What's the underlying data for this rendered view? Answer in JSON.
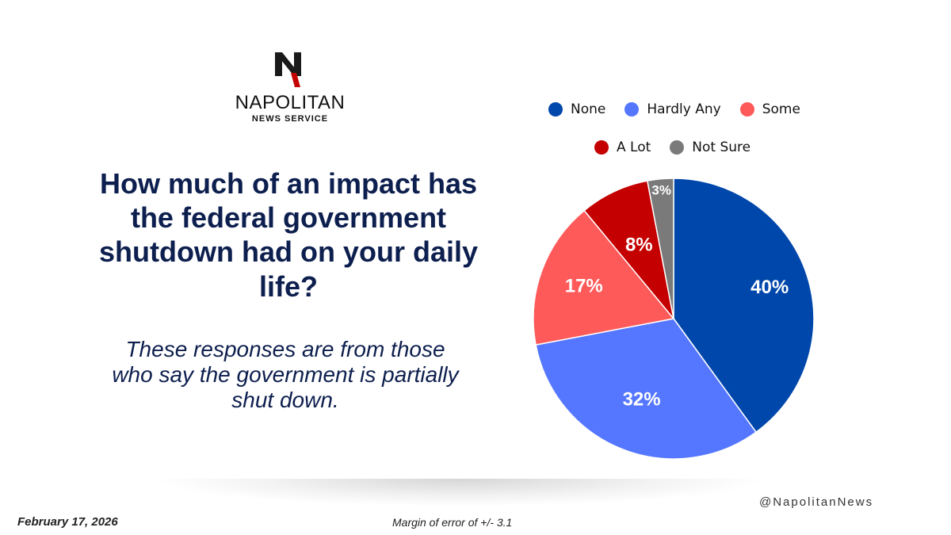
{
  "logo": {
    "name": "NAPOLITAN",
    "sub": "NEWS SERVICE"
  },
  "question": "How much of an impact has the federal government shutdown had on your daily life?",
  "subtitle": "These responses are from those who say the government is partially shut down.",
  "chart_data": {
    "type": "pie",
    "categories": [
      "None",
      "Hardly Any",
      "Some",
      "A Lot",
      "Not Sure"
    ],
    "values": [
      40,
      32,
      17,
      8,
      3
    ],
    "labels": [
      "40%",
      "32%",
      "17%",
      "8%",
      "3%"
    ],
    "colors": [
      "#0047ab",
      "#5577ff",
      "#ff5a5a",
      "#c40000",
      "#7a7a7a"
    ],
    "legend": "top"
  },
  "footer": {
    "handle": "@NapolitanNews",
    "date": "February 17, 2026",
    "moe": "Margin of error of +/- 3.1"
  }
}
